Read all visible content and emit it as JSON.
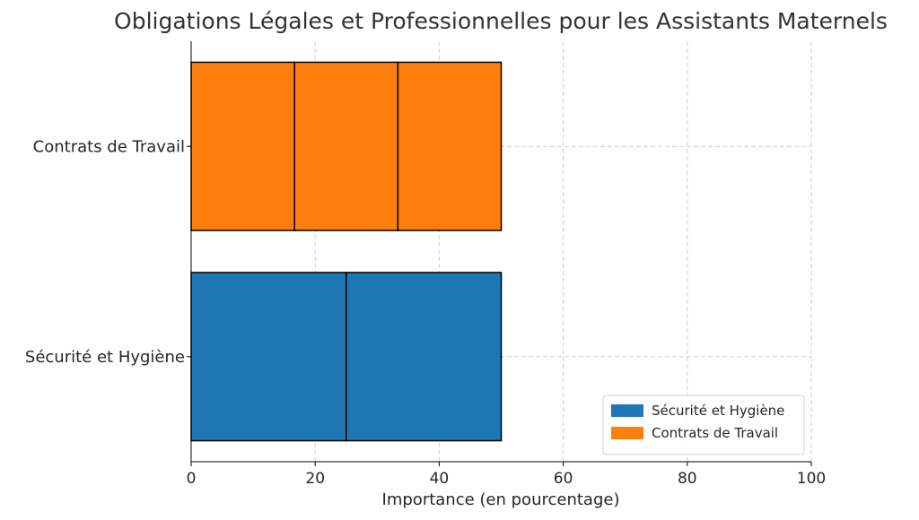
{
  "chart_data": {
    "type": "bar",
    "orientation": "horizontal",
    "stacked": true,
    "title": "Obligations Légales et Professionnelles pour les Assistants Maternels",
    "xlabel": "Importance (en pourcentage)",
    "ylabel": "",
    "xlim": [
      0,
      100
    ],
    "x_ticks": [
      0,
      20,
      40,
      60,
      80,
      100
    ],
    "grid": true,
    "legend_position": "lower-right",
    "categories": [
      "Sécurité et Hygiène",
      "Contrats de Travail"
    ],
    "series": [
      {
        "name": "Sécurité et Hygiène",
        "color": "#1f77b4",
        "category": "Sécurité et Hygiène",
        "segments": [
          25,
          25
        ]
      },
      {
        "name": "Contrats de Travail",
        "color": "#ff7f0e",
        "category": "Contrats de Travail",
        "segments": [
          16.67,
          16.67,
          16.66
        ]
      }
    ]
  }
}
